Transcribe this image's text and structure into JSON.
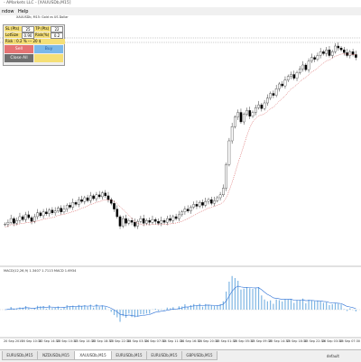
{
  "window": {
    "title": "- AMarkets LLC - [XAUUSDb,M15]"
  },
  "menu": [
    {
      "label": "ndow"
    },
    {
      "label": "Help"
    }
  ],
  "chart": {
    "symbol_label": "XAUUSDb, M15:  Gold vs US Dollar",
    "indicator_label": "MACD(12,26,9) 1.3407 1.7113 MACD 1.6934",
    "time_labels": [
      "20 Sep 2019",
      "20 Sep 10:30",
      "20 Sep 14:30",
      "23 Sep 10:30",
      "23 Sep 14:30",
      "23 Sep 18:30",
      "23 Sep 22:30",
      "24 Sep 03:30",
      "24 Sep 07:30",
      "24 Sep 11:30",
      "24 Sep 16:30",
      "24 Sep 20:30",
      "25 Sep 01:30",
      "25 Sep 05:30",
      "25 Sep 09:30",
      "25 Sep 14:30",
      "25 Sep 18:30",
      "25 Sep 22:30",
      "26 Sep 03:30",
      "26 Sep 07:30"
    ],
    "price_series": [
      32,
      34,
      38,
      33,
      36,
      40,
      37,
      42,
      39,
      35,
      40,
      44,
      41,
      45,
      43,
      47,
      44,
      46,
      49,
      45,
      48,
      52,
      50,
      55,
      53,
      58,
      56,
      60,
      57,
      62,
      59,
      63,
      61,
      65,
      62,
      58,
      54,
      48,
      40,
      30,
      38,
      33,
      36,
      34,
      30,
      35,
      38,
      33,
      36,
      34,
      37,
      35,
      33,
      36,
      34,
      38,
      36,
      40,
      38,
      42,
      45,
      48,
      46,
      50,
      53,
      51,
      55,
      52,
      56,
      58,
      54,
      57,
      60,
      63,
      70,
      95,
      120,
      135,
      145,
      150,
      140,
      148,
      152,
      146,
      150,
      155,
      158,
      154,
      160,
      165,
      170,
      168,
      175,
      180,
      178,
      184,
      188,
      190,
      186,
      192,
      196,
      200,
      195,
      204,
      208,
      206,
      210,
      214,
      212,
      216,
      210,
      214,
      220,
      218,
      216,
      213,
      210,
      214,
      211,
      208
    ]
  },
  "panel": {
    "sl_label": "SL (Pts)",
    "sl_value": "25",
    "tp_label": "TP (Pts)",
    "tp_value": "22",
    "lots_label": "LotSize",
    "lots_value": "0.90",
    "risk_label": "Risk(%)",
    "risk_value": "0.2",
    "info": "Risk : 0.2 %  ---  20 $",
    "sell_label": "Sell",
    "buy_label": "Buy",
    "close_label": "Close All",
    "colors": {
      "sell": "#e57373",
      "buy": "#7ab8ea",
      "close": "#707070",
      "blank": "#f5df76"
    }
  },
  "tabs": [
    {
      "label": "EURUSDb,M15",
      "active": false
    },
    {
      "label": "NZDUSDb,M15",
      "active": false
    },
    {
      "label": "XAUUSDb,M15",
      "active": true
    },
    {
      "label": "EURUSDb,M15",
      "active": false
    },
    {
      "label": "EURUSDb,M15",
      "active": false
    },
    {
      "label": "GBPUSDb,M15",
      "active": false
    }
  ],
  "status": {
    "profile": "default"
  }
}
